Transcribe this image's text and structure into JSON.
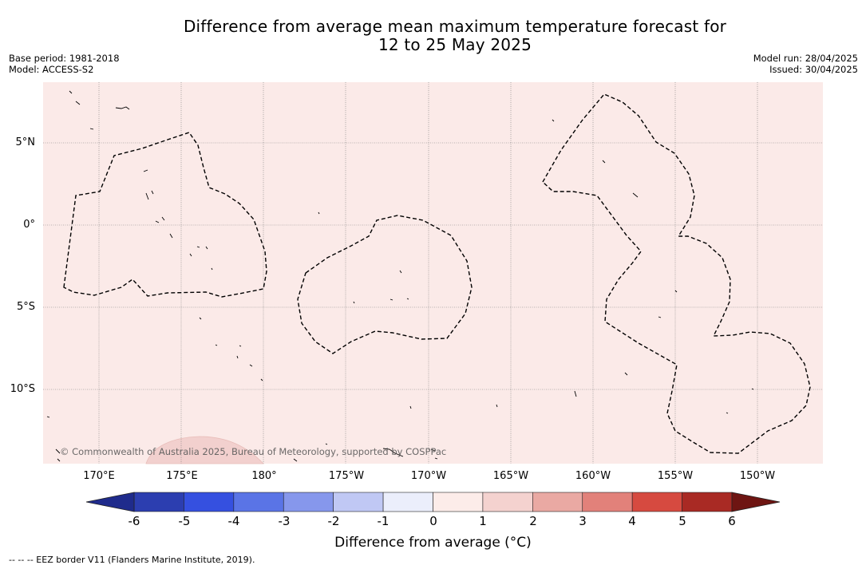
{
  "title_line1": "Difference from average mean maximum temperature forecast for",
  "title_line2": "12 to 25 May 2025",
  "base_period": "Base period: 1981-2018",
  "model": "Model: ACCESS-S2",
  "model_run": "Model run: 28/04/2025",
  "issued": "Issued: 30/04/2025",
  "lat_labels": [
    "5°N",
    "0°",
    "5°S",
    "10°S"
  ],
  "lon_labels": [
    "170°E",
    "175°E",
    "180°",
    "175°W",
    "170°W",
    "165°W",
    "160°W",
    "155°W",
    "150°W"
  ],
  "copyright": "© Commonwealth of Australia 2025, Bureau of Meteorology, supported by COSPPac",
  "colorbar": {
    "ticks": [
      "-6",
      "-5",
      "-4",
      "-3",
      "-2",
      "-1",
      "0",
      "1",
      "2",
      "3",
      "4",
      "5",
      "6"
    ],
    "colors": [
      "#1f2b8c",
      "#2c3eb0",
      "#3550e0",
      "#5a74e6",
      "#8697ec",
      "#c0c8f4",
      "#ebeefb",
      "#fcece9",
      "#f4d2cf",
      "#eaa9a3",
      "#e2817a",
      "#d64a40",
      "#a92a24",
      "#6e1512"
    ],
    "label": "Difference from average (°C)"
  },
  "legend_note": "--  --  -- EEZ border V11 (Flanders Marine Institute, 2019).",
  "colors": {
    "ocean_anomaly": "#fbeae8",
    "warmer_patch": "#f2d0ce",
    "eez_border": "#000000"
  }
}
